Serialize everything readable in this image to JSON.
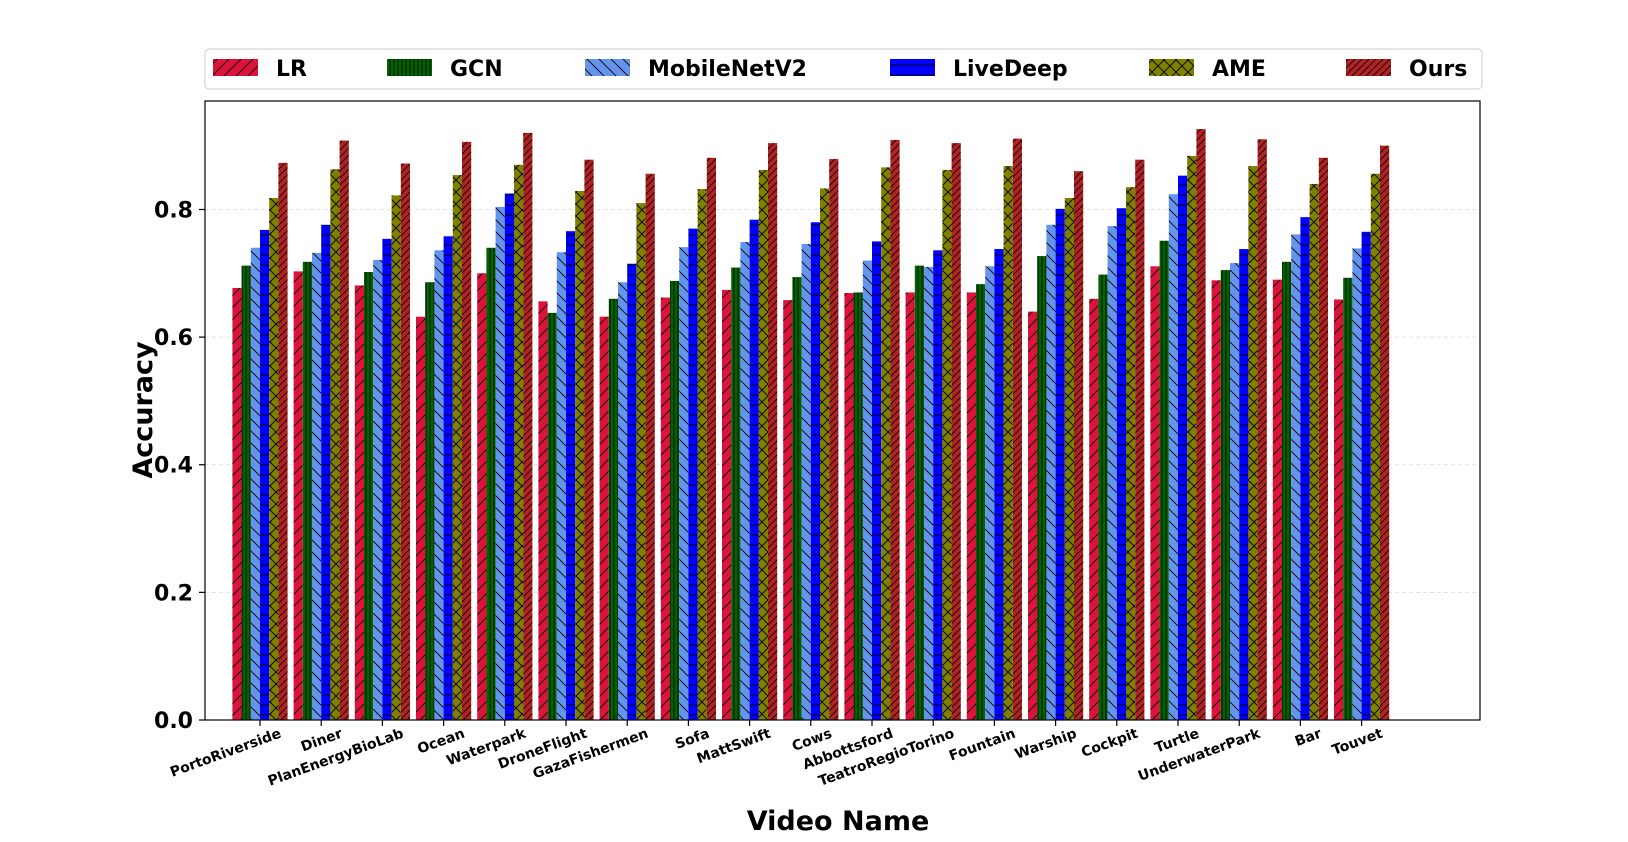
{
  "chart_data": {
    "type": "bar",
    "title": "",
    "xlabel": "Video Name",
    "ylabel": "Accuracy",
    "ylim": [
      0,
      0.97
    ],
    "yticks": [
      "0.0",
      "0.2",
      "0.4",
      "0.6",
      "0.8"
    ],
    "yticks_values": [
      0.0,
      0.2,
      0.4,
      0.6,
      0.8
    ],
    "grid": "horizontal dashed",
    "legend_position": "top",
    "categories": [
      "PortoRiverside",
      "Diner",
      "PlanEnergyBioLab",
      "Ocean",
      "Waterpark",
      "DroneFlight",
      "GazaFishermen",
      "Sofa",
      "MattSwift",
      "Cows",
      "Abbottsford",
      "TeatroRegioTorino",
      "Fountain",
      "Warship",
      "Cockpit",
      "Turtle",
      "UnderwaterPark",
      "Bar",
      "Touvet"
    ],
    "series": [
      {
        "name": "LR",
        "color": "#dc143c",
        "values": [
          0.677,
          0.703,
          0.681,
          0.632,
          0.7,
          0.656,
          0.632,
          0.662,
          0.674,
          0.658,
          0.669,
          0.67,
          0.67,
          0.64,
          0.66,
          0.711,
          0.689,
          0.69,
          0.659
        ]
      },
      {
        "name": "GCN",
        "color": "#006400",
        "values": [
          0.712,
          0.718,
          0.702,
          0.686,
          0.74,
          0.638,
          0.66,
          0.688,
          0.709,
          0.694,
          0.67,
          0.712,
          0.683,
          0.727,
          0.698,
          0.751,
          0.705,
          0.718,
          0.693
        ]
      },
      {
        "name": "MobileNetV2",
        "color": "#6495ed",
        "values": [
          0.74,
          0.732,
          0.721,
          0.736,
          0.804,
          0.733,
          0.686,
          0.741,
          0.749,
          0.746,
          0.72,
          0.71,
          0.711,
          0.776,
          0.774,
          0.824,
          0.716,
          0.761,
          0.739
        ]
      },
      {
        "name": "LiveDeep",
        "color": "#0000ff",
        "values": [
          0.768,
          0.776,
          0.754,
          0.758,
          0.825,
          0.766,
          0.715,
          0.77,
          0.784,
          0.78,
          0.75,
          0.736,
          0.738,
          0.801,
          0.802,
          0.853,
          0.738,
          0.788,
          0.765
        ]
      },
      {
        "name": "AME",
        "color": "#808000",
        "values": [
          0.818,
          0.863,
          0.822,
          0.854,
          0.87,
          0.829,
          0.81,
          0.832,
          0.862,
          0.833,
          0.866,
          0.862,
          0.868,
          0.818,
          0.835,
          0.884,
          0.868,
          0.84,
          0.856
        ]
      },
      {
        "name": "Ours",
        "color": "#b22222",
        "values": [
          0.873,
          0.908,
          0.872,
          0.906,
          0.92,
          0.878,
          0.856,
          0.881,
          0.904,
          0.879,
          0.909,
          0.904,
          0.911,
          0.86,
          0.878,
          0.926,
          0.91,
          0.881,
          0.9
        ]
      }
    ]
  }
}
